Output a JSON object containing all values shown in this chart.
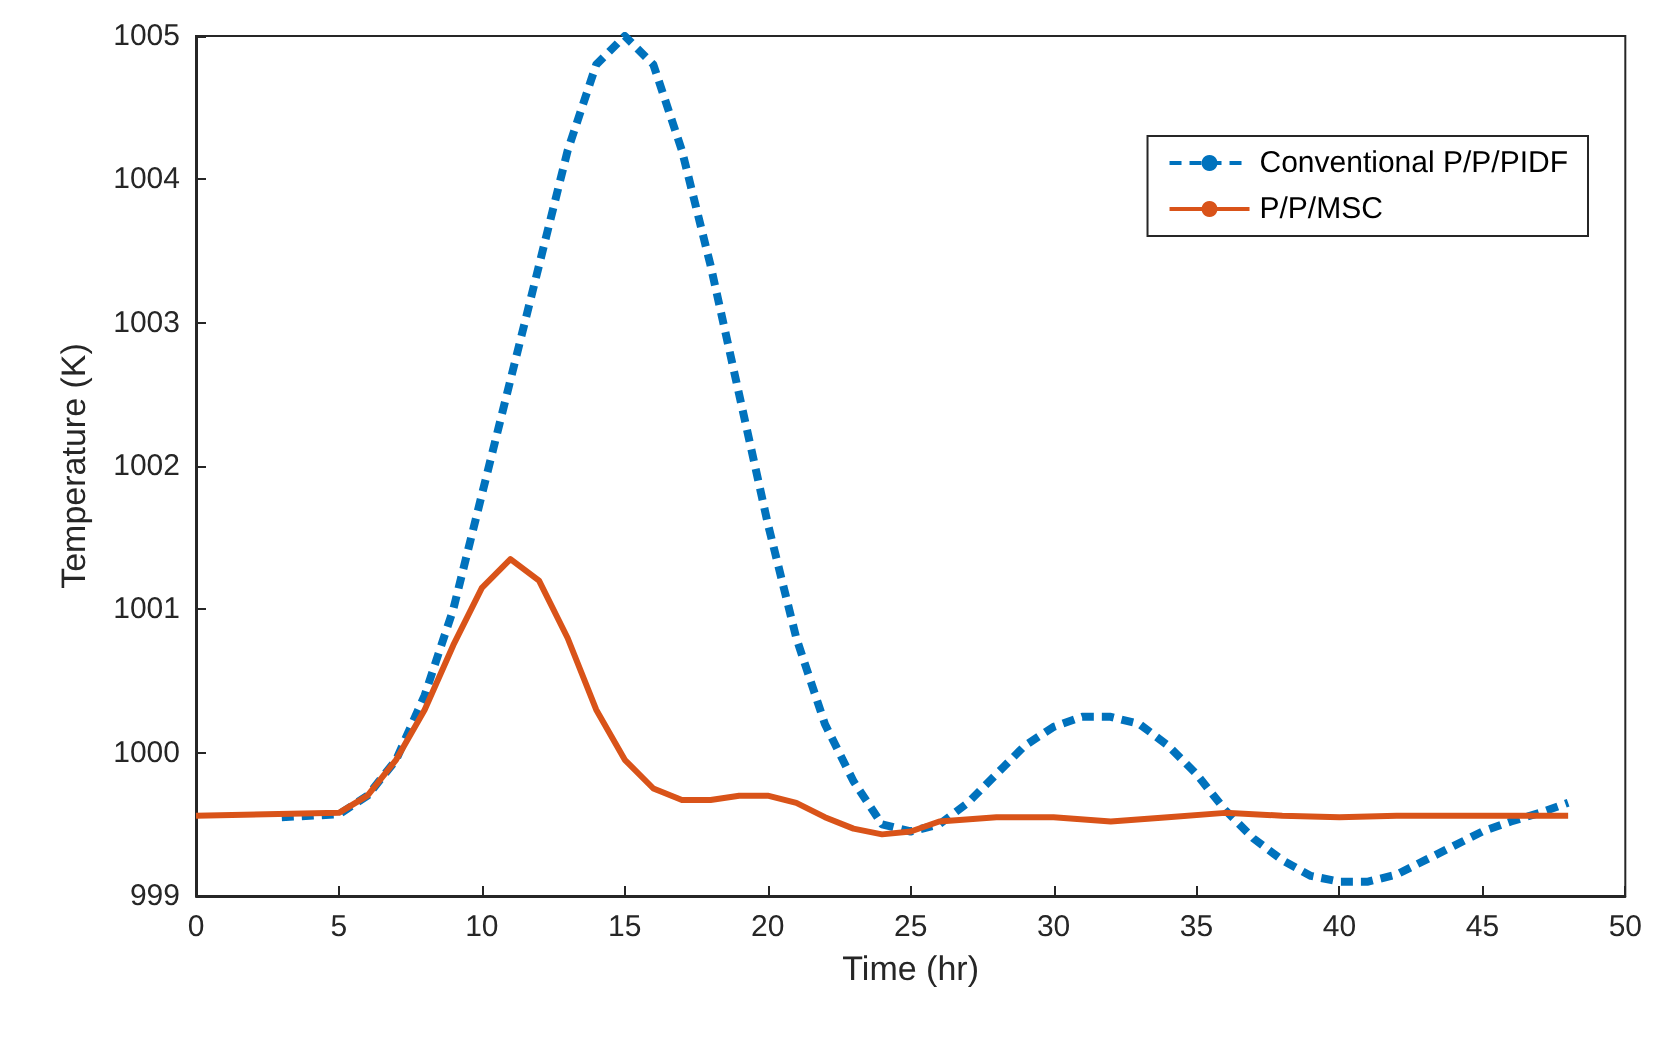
{
  "chart_data": {
    "type": "line",
    "xlabel": "Time (hr)",
    "ylabel": "Temperature (K)",
    "xlim": [
      0,
      50
    ],
    "xticks": [
      0,
      5,
      10,
      15,
      20,
      25,
      30,
      35,
      40,
      45,
      50
    ],
    "ylim": [
      999,
      1005
    ],
    "yticks": [
      999,
      1000,
      1001,
      1002,
      1003,
      1004,
      1005
    ],
    "grid": false,
    "legend": "top right",
    "marker": "none",
    "series": [
      {
        "name": "Conventional P/P/PIDF",
        "color": "#0072bd",
        "line_style": "dashed",
        "x": [
          3,
          5,
          6,
          7,
          8,
          9,
          10,
          11,
          12,
          13,
          14,
          15,
          16,
          17,
          18,
          19,
          20,
          21,
          22,
          23,
          24,
          25,
          26,
          27,
          28,
          29,
          30,
          31,
          32,
          33,
          34,
          35,
          36,
          37,
          38,
          39,
          40,
          41,
          42,
          43,
          44,
          45,
          46,
          47,
          48
        ],
        "values": [
          999.55,
          999.57,
          999.7,
          999.95,
          1000.4,
          1001.0,
          1001.8,
          1002.6,
          1003.4,
          1004.2,
          1004.8,
          1005.0,
          1004.8,
          1004.2,
          1003.4,
          1002.5,
          1001.6,
          1000.8,
          1000.2,
          999.8,
          999.5,
          999.45,
          999.5,
          999.65,
          999.85,
          1000.05,
          1000.18,
          1000.25,
          1000.25,
          1000.2,
          1000.05,
          999.85,
          999.6,
          999.4,
          999.25,
          999.14,
          999.1,
          999.1,
          999.15,
          999.25,
          999.35,
          999.45,
          999.52,
          999.58,
          999.65
        ]
      },
      {
        "name": "P/P/MSC",
        "color": "#d95319",
        "line_style": "solid",
        "x": [
          0,
          5,
          6,
          7,
          8,
          9,
          10,
          11,
          12,
          13,
          14,
          15,
          16,
          17,
          18,
          19,
          20,
          21,
          22,
          23,
          24,
          25,
          26,
          28,
          30,
          32,
          34,
          36,
          38,
          40,
          42,
          48
        ],
        "values": [
          999.56,
          999.58,
          999.7,
          999.95,
          1000.3,
          1000.75,
          1001.15,
          1001.35,
          1001.2,
          1000.8,
          1000.3,
          999.95,
          999.75,
          999.67,
          999.67,
          999.7,
          999.7,
          999.65,
          999.55,
          999.47,
          999.43,
          999.45,
          999.52,
          999.55,
          999.55,
          999.52,
          999.55,
          999.58,
          999.56,
          999.55,
          999.56,
          999.56
        ]
      }
    ]
  }
}
